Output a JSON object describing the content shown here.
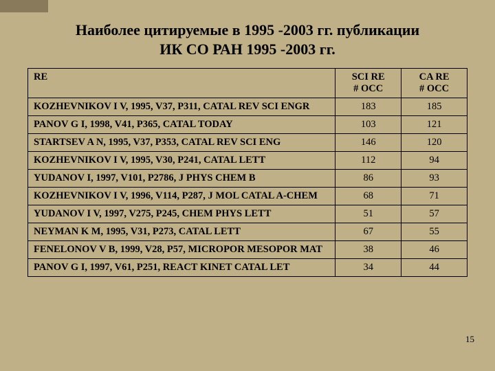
{
  "title_line1": "Наиболее цитируемые в 1995 -2003 гг. публикации",
  "title_line2": "ИК СО РАН 1995 -2003 гг.",
  "page_number": "15",
  "table": {
    "columns": {
      "ref": "RE",
      "sci_occ_line1": "SCI  RE",
      "sci_occ_line2": "# OCC",
      "ca_occ_line1": "CA RE",
      "ca_occ_line2": "# OCC"
    },
    "rows": [
      {
        "ref": "KOZHEVNIKOV I V, 1995, V37, P311, CATAL REV SCI ENGR",
        "sci": "183",
        "ca": "185"
      },
      {
        "ref": "PANOV G I, 1998, V41, P365, CATAL TODAY",
        "sci": "103",
        "ca": "121"
      },
      {
        "ref": "STARTSEV A N, 1995, V37, P353, CATAL REV SCI ENG",
        "sci": "146",
        "ca": "120"
      },
      {
        "ref": "KOZHEVNIKOV I V, 1995, V30, P241, CATAL LETT",
        "sci": "112",
        "ca": "94"
      },
      {
        "ref": "YUDANOV I, 1997, V101, P2786, J PHYS CHEM B",
        "sci": "86",
        "ca": "93"
      },
      {
        "ref": "KOZHEVNIKOV I V, 1996, V114, P287, J MOL CATAL A-CHEM",
        "sci": "68",
        "ca": "71"
      },
      {
        "ref": "YUDANOV I V, 1997, V275, P245, CHEM PHYS LETT",
        "sci": "51",
        "ca": "57"
      },
      {
        "ref": "NEYMAN K M, 1995, V31, P273, CATAL LETT",
        "sci": "67",
        "ca": "55"
      },
      {
        "ref": "FENELONOV V B, 1999, V28, P57, MICROPOR MESOPOR MAT",
        "sci": "38",
        "ca": "46"
      },
      {
        "ref": "PANOV G I, 1997, V61, P251, REACT KINET CATAL LET",
        "sci": "34",
        "ca": "44"
      }
    ]
  }
}
